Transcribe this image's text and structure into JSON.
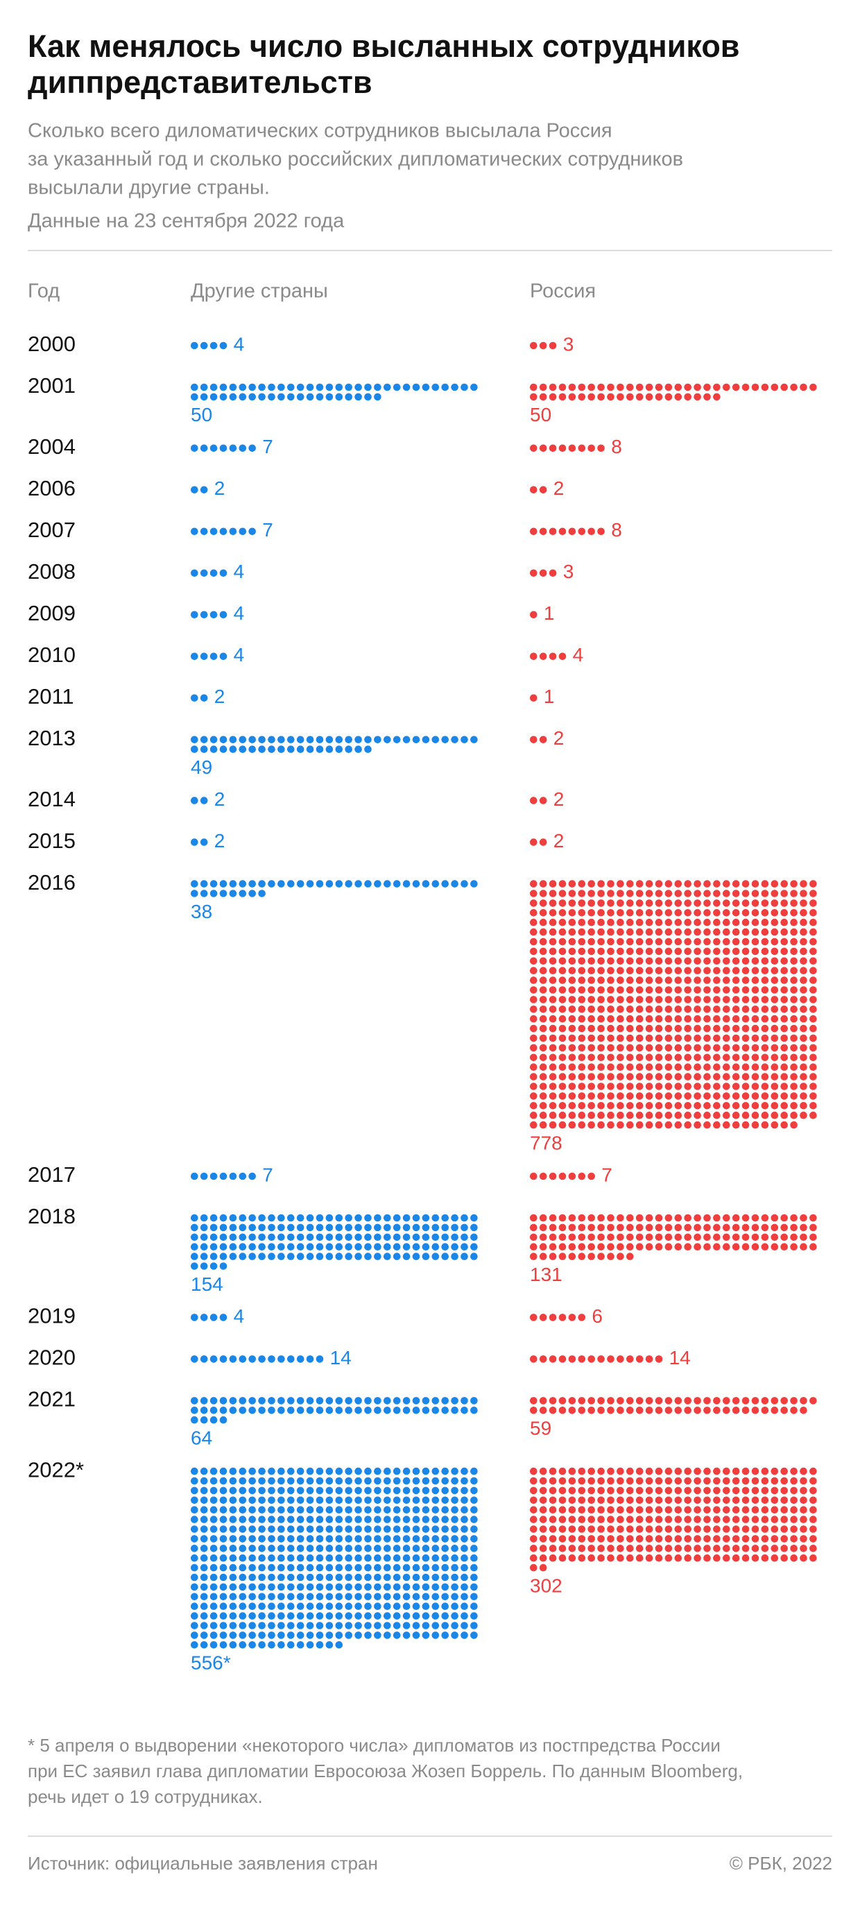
{
  "chart_data": {
    "type": "dot-matrix",
    "title_lines": [
      "Как менялось число высланных сотрудников",
      "диппредставительств"
    ],
    "subtitle_lines": [
      "Сколько всего диломатических сотрудников высылала Россия",
      "за указанный год и сколько российских дипломатических сотрудников",
      "высылали другие страны."
    ],
    "date_note": "Данные на 23 сентября 2022 года",
    "x_label": "Год",
    "categories": [
      "2000",
      "2001",
      "2004",
      "2006",
      "2007",
      "2008",
      "2009",
      "2010",
      "2011",
      "2013",
      "2014",
      "2015",
      "2016",
      "2017",
      "2018",
      "2019",
      "2020",
      "2021",
      "2022*"
    ],
    "series": [
      {
        "name": "Другие страны",
        "color": "#1a86e8",
        "values": [
          4,
          50,
          7,
          2,
          7,
          4,
          4,
          4,
          2,
          49,
          2,
          2,
          38,
          7,
          154,
          4,
          14,
          64,
          556
        ],
        "value_labels": [
          "4",
          "50",
          "7",
          "2",
          "7",
          "4",
          "4",
          "4",
          "2",
          "49",
          "2",
          "2",
          "38",
          "7",
          "154",
          "4",
          "14",
          "64",
          "556*"
        ]
      },
      {
        "name": "Россия",
        "color": "#f03d3d",
        "values": [
          3,
          50,
          8,
          2,
          8,
          3,
          1,
          4,
          1,
          2,
          2,
          2,
          778,
          7,
          131,
          6,
          14,
          59,
          302
        ]
      }
    ],
    "footnote_lines": [
      "* 5 апреля о выдворении «некоторого числа» дипломатов из постпредства России",
      "при ЕС заявил глава дипломатии Евросоюза Жозеп Боррель. По данным Bloomberg,",
      "речь идет о 19 сотрудниках."
    ],
    "source": "Источник: официальные заявления стран",
    "credit": "© РБК, 2022"
  }
}
